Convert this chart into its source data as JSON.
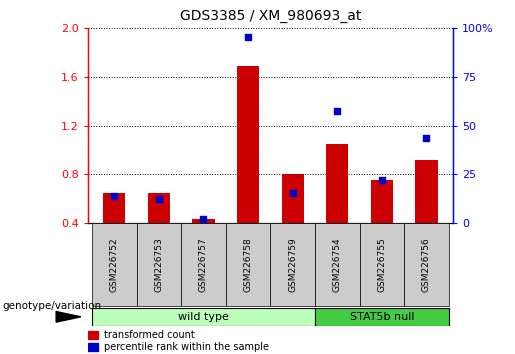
{
  "title": "GDS3385 / XM_980693_at",
  "samples": [
    "GSM226752",
    "GSM226753",
    "GSM226757",
    "GSM226758",
    "GSM226759",
    "GSM226754",
    "GSM226755",
    "GSM226756"
  ],
  "transformed_count": [
    0.65,
    0.65,
    0.43,
    1.69,
    0.8,
    1.05,
    0.75,
    0.92
  ],
  "percentile_rank_left_axis": [
    0.62,
    0.6,
    0.43,
    1.93,
    0.65,
    1.32,
    0.75,
    1.1
  ],
  "bar_bottom": 0.4,
  "ylim_left": [
    0.4,
    2.0
  ],
  "ylim_right": [
    0,
    100
  ],
  "yticks_left": [
    0.4,
    0.8,
    1.2,
    1.6,
    2.0
  ],
  "yticks_right": [
    0,
    25,
    50,
    75,
    100
  ],
  "bar_color": "#cc0000",
  "dot_color": "#0000cc",
  "n_wild_type": 5,
  "wild_type_label": "wild type",
  "stat5b_null_label": "STAT5b null",
  "wild_type_color": "#bbffbb",
  "stat5b_null_color": "#44cc44",
  "genotype_label": "genotype/variation",
  "legend_bar_label": "transformed count",
  "legend_dot_label": "percentile rank within the sample",
  "tick_label_bg": "#cccccc",
  "title_fontsize": 10,
  "tick_fontsize": 8,
  "label_fontsize": 7.5
}
